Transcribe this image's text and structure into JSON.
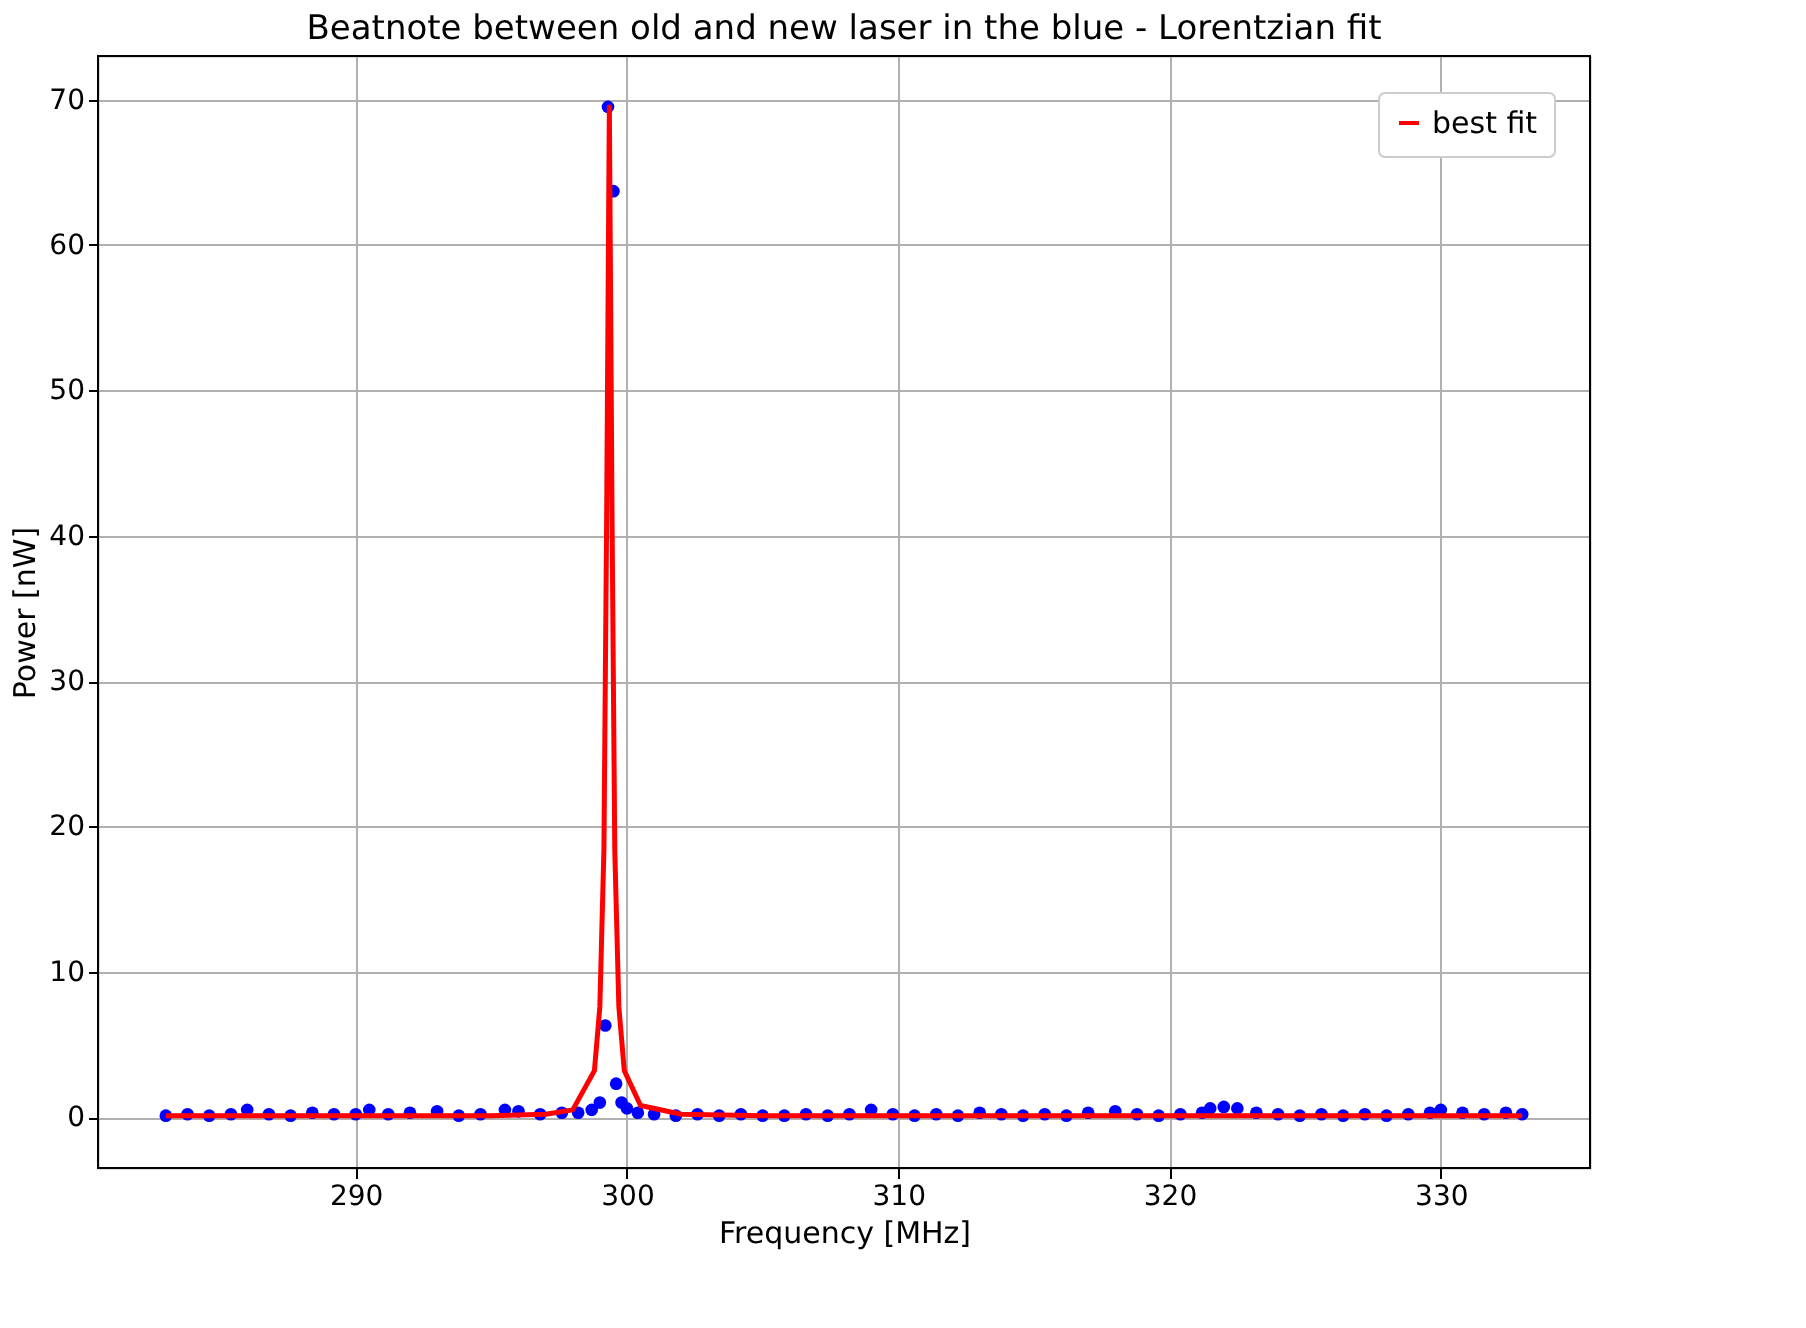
{
  "chart_data": {
    "type": "scatter",
    "title": "Beatnote between old and new laser in the blue - Lorentzian fit",
    "xlabel": "Frequency [MHz]",
    "ylabel": "Power [nW]",
    "xlim": [
      280.5,
      335.5
    ],
    "ylim": [
      -3.5,
      73.0
    ],
    "xticks": [
      290,
      300,
      310,
      320,
      330
    ],
    "yticks": [
      0,
      10,
      20,
      30,
      40,
      50,
      60,
      70
    ],
    "grid": true,
    "legend": "top right",
    "series": [
      {
        "color": "#0000ff",
        "marker": "circle",
        "x": [
          283,
          283.8,
          284.6,
          285.4,
          286,
          286.8,
          287.6,
          288.4,
          289.2,
          290,
          290.5,
          291.2,
          292,
          293,
          293.8,
          294.6,
          295.5,
          296,
          296.8,
          297.6,
          298.2,
          298.7,
          299.0,
          299.2,
          299.3,
          299.5,
          299.6,
          299.8,
          300.0,
          300.4,
          301,
          301.8,
          302.6,
          303.4,
          304.2,
          305,
          305.8,
          306.6,
          307.4,
          308.2,
          309,
          309.8,
          310.6,
          311.4,
          312.2,
          313,
          313.8,
          314.6,
          315.4,
          316.2,
          317,
          318,
          318.8,
          319.6,
          320.4,
          321.2,
          321.5,
          322,
          322.5,
          323.2,
          324,
          324.8,
          325.6,
          326.4,
          327.2,
          328,
          328.8,
          329.6,
          330,
          330.8,
          331.6,
          332.4,
          333
        ],
        "values": [
          0.1,
          0.2,
          0.1,
          0.2,
          0.5,
          0.2,
          0.1,
          0.3,
          0.2,
          0.2,
          0.5,
          0.2,
          0.3,
          0.4,
          0.1,
          0.2,
          0.5,
          0.4,
          0.2,
          0.3,
          0.3,
          0.5,
          1.0,
          6.3,
          69.5,
          63.7,
          2.3,
          1.0,
          0.6,
          0.3,
          0.2,
          0.1,
          0.2,
          0.1,
          0.2,
          0.1,
          0.1,
          0.2,
          0.1,
          0.2,
          0.5,
          0.2,
          0.1,
          0.2,
          0.1,
          0.3,
          0.2,
          0.1,
          0.2,
          0.1,
          0.3,
          0.4,
          0.2,
          0.1,
          0.2,
          0.3,
          0.6,
          0.7,
          0.6,
          0.3,
          0.2,
          0.1,
          0.2,
          0.1,
          0.2,
          0.1,
          0.2,
          0.3,
          0.5,
          0.3,
          0.2,
          0.3,
          0.2
        ]
      },
      {
        "type": "line",
        "name": "best fit",
        "color": "#ff0000",
        "marker": "none",
        "line_style": "solid",
        "x": [
          283,
          290,
          295,
          297,
          298,
          298.8,
          299.0,
          299.15,
          299.25,
          299.35,
          299.45,
          299.55,
          299.7,
          299.9,
          300.5,
          302,
          305,
          315,
          333
        ],
        "values": [
          0.1,
          0.1,
          0.1,
          0.2,
          0.5,
          3.2,
          7.6,
          18.4,
          41.1,
          69.5,
          41.1,
          18.4,
          7.6,
          3.2,
          0.8,
          0.2,
          0.1,
          0.1,
          0.1
        ]
      }
    ]
  }
}
